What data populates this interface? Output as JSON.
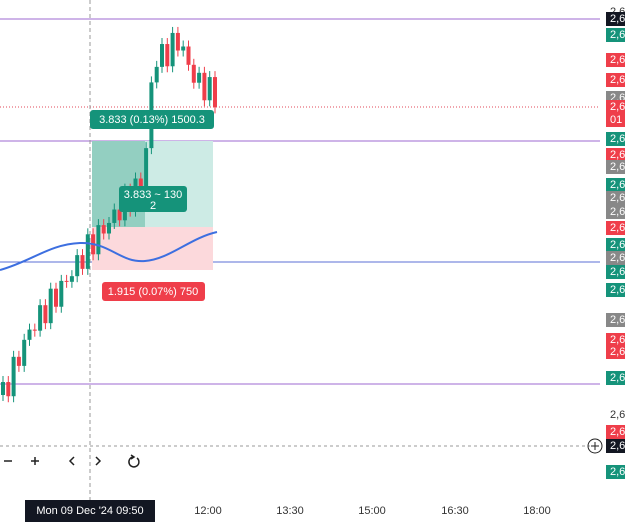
{
  "chart": {
    "trade_labels": {
      "target": "3.833 (0.13%) 1500.3",
      "entry_line1": "3.833 ~ 130",
      "entry_line2": "2",
      "stop": "1.915 (0.07%) 750"
    },
    "time_axis": {
      "cursor": "Mon 09 Dec '24  09:50",
      "ticks": [
        "12:00",
        "13:30",
        "15:00",
        "16:30",
        "18:00"
      ]
    },
    "price_axis": [
      "2,6",
      "2,6",
      "2,6",
      "2,6",
      "2,6",
      "2,6",
      "2,6",
      "01",
      "2,6",
      "2,6",
      "2,6",
      "2,6",
      "2,6",
      "2,6",
      "2,6",
      "2,6",
      "2,6",
      "2,6",
      "2,6",
      "2,6",
      "2,6",
      "2,6",
      "2,6",
      "2,6",
      "2,6",
      "2,6",
      "2,6"
    ]
  }
}
